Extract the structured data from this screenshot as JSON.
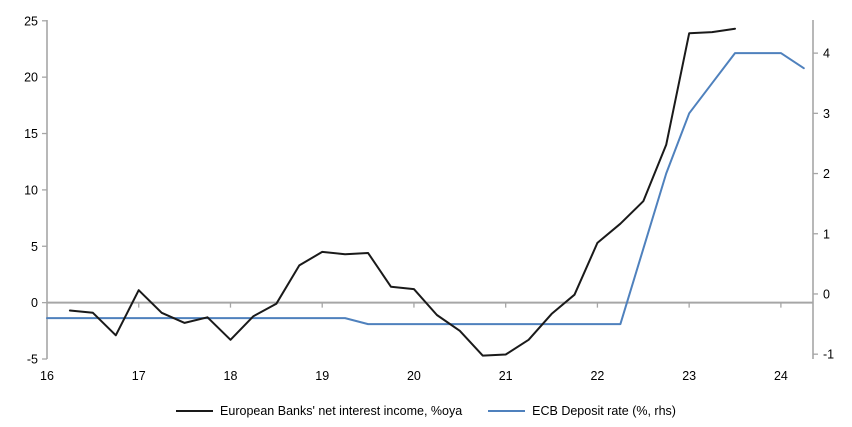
{
  "chart": {
    "legend": [
      {
        "label": "European Banks' net interest income, %oya",
        "color": "#1a1a1a"
      },
      {
        "label": "ECB Deposit rate (%, rhs)",
        "color": "#4f81bd"
      }
    ]
  },
  "chart_data": {
    "type": "line",
    "title": "",
    "xlabel": "",
    "ylabel_left": "",
    "ylabel_right": "",
    "grid": "off",
    "legend_position": "bottom-center",
    "axis_color": "#a6a6a6",
    "x_axis": {
      "ticks": [
        16,
        17,
        18,
        19,
        20,
        21,
        22,
        23,
        24
      ],
      "range": [
        16,
        24.35
      ],
      "crosses_at_left_value": 0
    },
    "y_axis_left": {
      "ticks": [
        -5,
        0,
        5,
        10,
        15,
        20,
        25
      ],
      "range": [
        -5.0,
        25.07
      ]
    },
    "y_axis_right": {
      "ticks": [
        -1,
        0,
        1,
        2,
        3,
        4
      ],
      "range": [
        -1.08,
        4.55
      ]
    },
    "series": [
      {
        "name": "ECB Deposit rate (%, rhs)",
        "axis": "right",
        "color": "#4f81bd",
        "x": [
          16.0,
          16.25,
          16.5,
          16.75,
          17.0,
          17.25,
          17.5,
          17.75,
          18.0,
          18.25,
          18.5,
          18.75,
          19.0,
          19.25,
          19.5,
          19.75,
          20.0,
          20.25,
          20.5,
          20.75,
          21.0,
          21.25,
          21.5,
          21.75,
          22.0,
          22.25,
          22.5,
          22.75,
          23.0,
          23.25,
          23.5,
          23.75,
          24.0,
          24.25
        ],
        "values": [
          -0.4,
          -0.4,
          -0.4,
          -0.4,
          -0.4,
          -0.4,
          -0.4,
          -0.4,
          -0.4,
          -0.4,
          -0.4,
          -0.4,
          -0.4,
          -0.4,
          -0.5,
          -0.5,
          -0.5,
          -0.5,
          -0.5,
          -0.5,
          -0.5,
          -0.5,
          -0.5,
          -0.5,
          -0.5,
          -0.5,
          0.75,
          2.0,
          3.0,
          3.5,
          4.0,
          4.0,
          4.0,
          3.75
        ]
      },
      {
        "name": "European Banks' net interest income, %oya",
        "axis": "left",
        "color": "#1a1a1a",
        "x": [
          16.25,
          16.5,
          16.75,
          17.0,
          17.25,
          17.5,
          17.75,
          18.0,
          18.25,
          18.5,
          18.75,
          19.0,
          19.25,
          19.5,
          19.75,
          20.0,
          20.25,
          20.5,
          20.75,
          21.0,
          21.25,
          21.5,
          21.75,
          22.0,
          22.25,
          22.5,
          22.75,
          23.0,
          23.25,
          23.5
        ],
        "values": [
          -0.7,
          -0.9,
          -2.9,
          1.1,
          -0.9,
          -1.8,
          -1.3,
          -3.3,
          -1.2,
          -0.1,
          3.3,
          4.5,
          4.3,
          4.4,
          1.4,
          1.2,
          -1.1,
          -2.5,
          -4.7,
          -4.6,
          -3.3,
          -1.0,
          0.7,
          5.3,
          7.0,
          9.0,
          14.0,
          23.9,
          24.0,
          24.3
        ]
      }
    ]
  }
}
